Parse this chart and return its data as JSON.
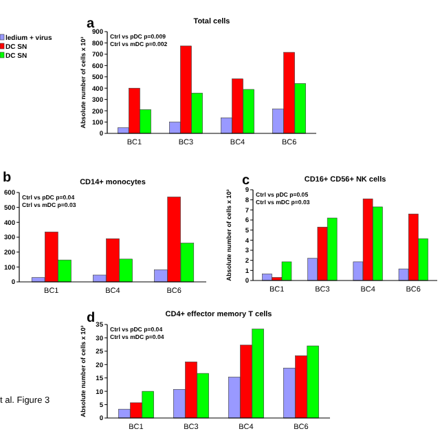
{
  "chart_data": [
    {
      "type": "bar",
      "title": "Total cells",
      "ylabel": "Absolute number of cells x 10³",
      "categories": [
        "BC1",
        "BC3",
        "BC4",
        "BC6"
      ],
      "ylim": [
        0,
        900
      ],
      "yticks": [
        0,
        100,
        200,
        300,
        400,
        500,
        600,
        700,
        800,
        900
      ],
      "legend": "left",
      "annotations": [
        "a",
        "Ctrl vs pDC p=0.009",
        "Ctrl vs mDC p=0.002"
      ],
      "series": [
        {
          "name": "ledium + virus",
          "color": "#9999ff",
          "values": [
            50,
            100,
            138,
            215
          ]
        },
        {
          "name": "DC SN",
          "color": "#ff0000",
          "values": [
            400,
            773,
            482,
            717
          ]
        },
        {
          "name": "DC SN",
          "color": "#00ff00",
          "values": [
            210,
            356,
            389,
            441
          ]
        }
      ]
    },
    {
      "type": "bar",
      "title": "CD14+ monocytes",
      "categories": [
        "BC1",
        "BC4",
        "BC6"
      ],
      "ylim": [
        0,
        600
      ],
      "yticks": [
        0,
        100,
        200,
        300,
        400,
        500,
        600
      ],
      "annotations": [
        "b",
        "Ctrl vs pDC p=0.04",
        "Ctrl vs mDC p=0.03"
      ],
      "series": [
        {
          "color": "#9999ff",
          "values": [
            29,
            46,
            81
          ]
        },
        {
          "color": "#ff0000",
          "values": [
            335,
            290,
            570
          ]
        },
        {
          "color": "#00ff00",
          "values": [
            147,
            153,
            260
          ]
        }
      ]
    },
    {
      "type": "bar",
      "title": "CD16+ CD56+ NK cells",
      "ylabel": "Absolute number of cells x 10³",
      "categories": [
        "BC1",
        "BC3",
        "BC4",
        "BC6"
      ],
      "ylim": [
        0,
        9
      ],
      "yticks": [
        0,
        1,
        2,
        3,
        4,
        5,
        6,
        7,
        8,
        9
      ],
      "annotations": [
        "c",
        "Ctrl vs pDC p=0.05",
        "Ctrl vs mDC p=0.03"
      ],
      "series": [
        {
          "color": "#9999ff",
          "values": [
            0.65,
            2.2,
            1.85,
            1.15
          ]
        },
        {
          "color": "#ff0000",
          "values": [
            0.3,
            5.3,
            8.1,
            6.6
          ]
        },
        {
          "color": "#00ff00",
          "values": [
            1.85,
            6.2,
            7.3,
            4.15
          ]
        }
      ]
    },
    {
      "type": "bar",
      "title": "CD4+ effector memory T cells",
      "ylabel": "Absolute number of cells x 10³",
      "categories": [
        "BC1",
        "BC3",
        "BC4",
        "BC6"
      ],
      "ylim": [
        0,
        35
      ],
      "yticks": [
        0,
        5,
        10,
        15,
        20,
        25,
        30,
        35
      ],
      "annotations": [
        "d",
        "Ctrl vs pDC p=0.04",
        "Ctrl vs mDC p=0.04",
        "t al. Figure 3"
      ],
      "series": [
        {
          "color": "#9999ff",
          "values": [
            3.3,
            10.7,
            15.3,
            18.7
          ]
        },
        {
          "color": "#ff0000",
          "values": [
            5.7,
            21,
            27.3,
            23.3
          ]
        },
        {
          "color": "#00ff00",
          "values": [
            10,
            16.7,
            33.3,
            27
          ]
        }
      ]
    }
  ]
}
